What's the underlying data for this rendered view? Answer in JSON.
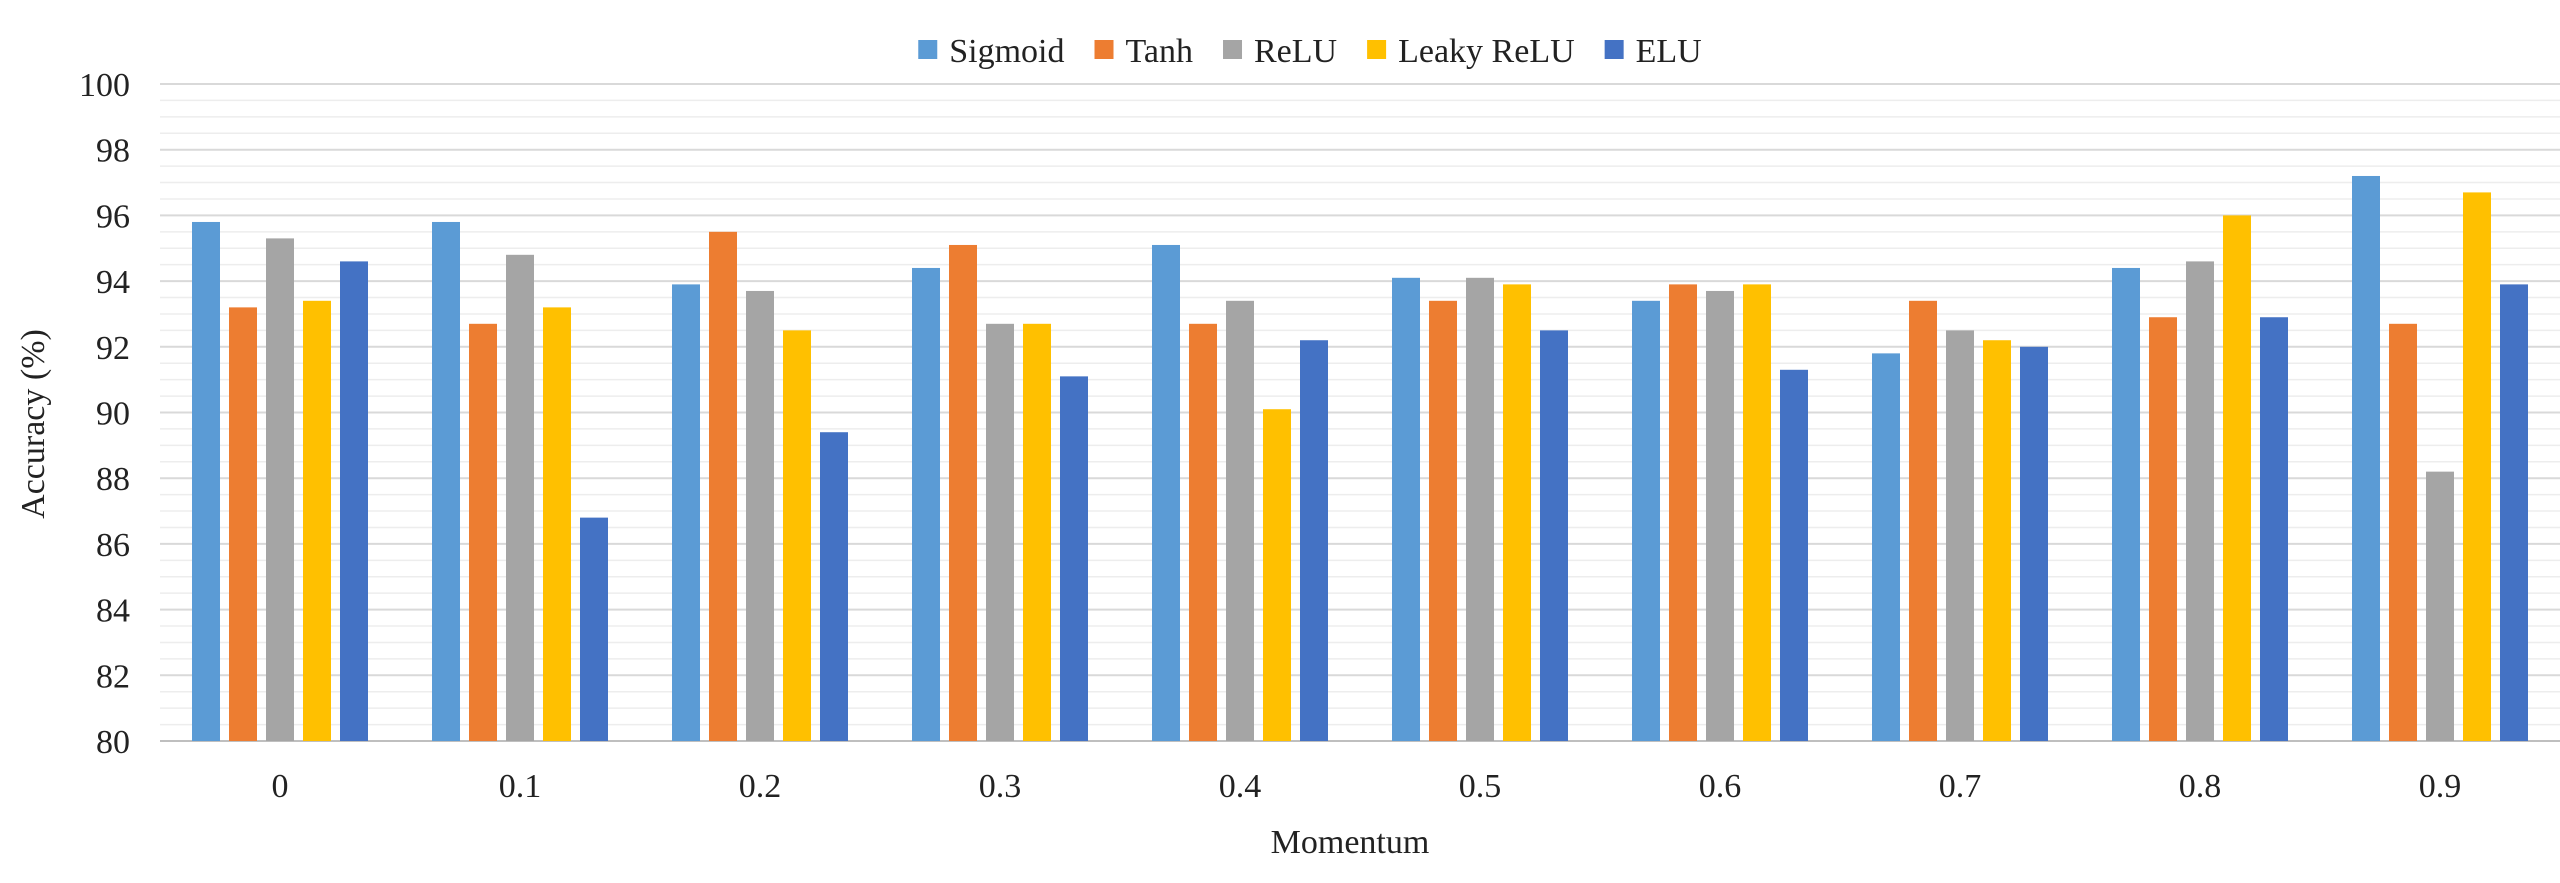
{
  "chart_data": {
    "type": "bar",
    "xlabel": "Momentum",
    "ylabel": "Accuracy (%)",
    "ylim": [
      80,
      100
    ],
    "y_major_step": 2,
    "y_minor_step": 0.5,
    "y_ticks": [
      "80",
      "82",
      "84",
      "86",
      "88",
      "90",
      "92",
      "94",
      "96",
      "98",
      "100"
    ],
    "grid": true,
    "legend_position": "top-center",
    "categories": [
      "0",
      "0.1",
      "0.2",
      "0.3",
      "0.4",
      "0.5",
      "0.6",
      "0.7",
      "0.8",
      "0.9"
    ],
    "series": [
      {
        "name": "Sigmoid",
        "color": "#5B9BD5",
        "values": [
          95.8,
          95.8,
          93.9,
          94.4,
          95.1,
          94.1,
          93.4,
          91.8,
          94.4,
          97.2
        ]
      },
      {
        "name": "Tanh",
        "color": "#ED7D31",
        "values": [
          93.2,
          92.7,
          95.5,
          95.1,
          92.7,
          93.4,
          93.9,
          93.4,
          92.9,
          92.7
        ]
      },
      {
        "name": "ReLU",
        "color": "#A5A5A5",
        "values": [
          95.3,
          94.8,
          93.7,
          92.7,
          93.4,
          94.1,
          93.7,
          92.5,
          94.6,
          88.2
        ]
      },
      {
        "name": "Leaky ReLU",
        "color": "#FFC000",
        "values": [
          93.4,
          93.2,
          92.5,
          92.7,
          90.1,
          93.9,
          93.9,
          92.2,
          96.0,
          96.7
        ]
      },
      {
        "name": "ELU",
        "color": "#4472C4",
        "values": [
          94.6,
          86.8,
          89.4,
          91.1,
          92.2,
          92.5,
          91.3,
          92.0,
          92.9,
          93.9
        ]
      }
    ]
  }
}
